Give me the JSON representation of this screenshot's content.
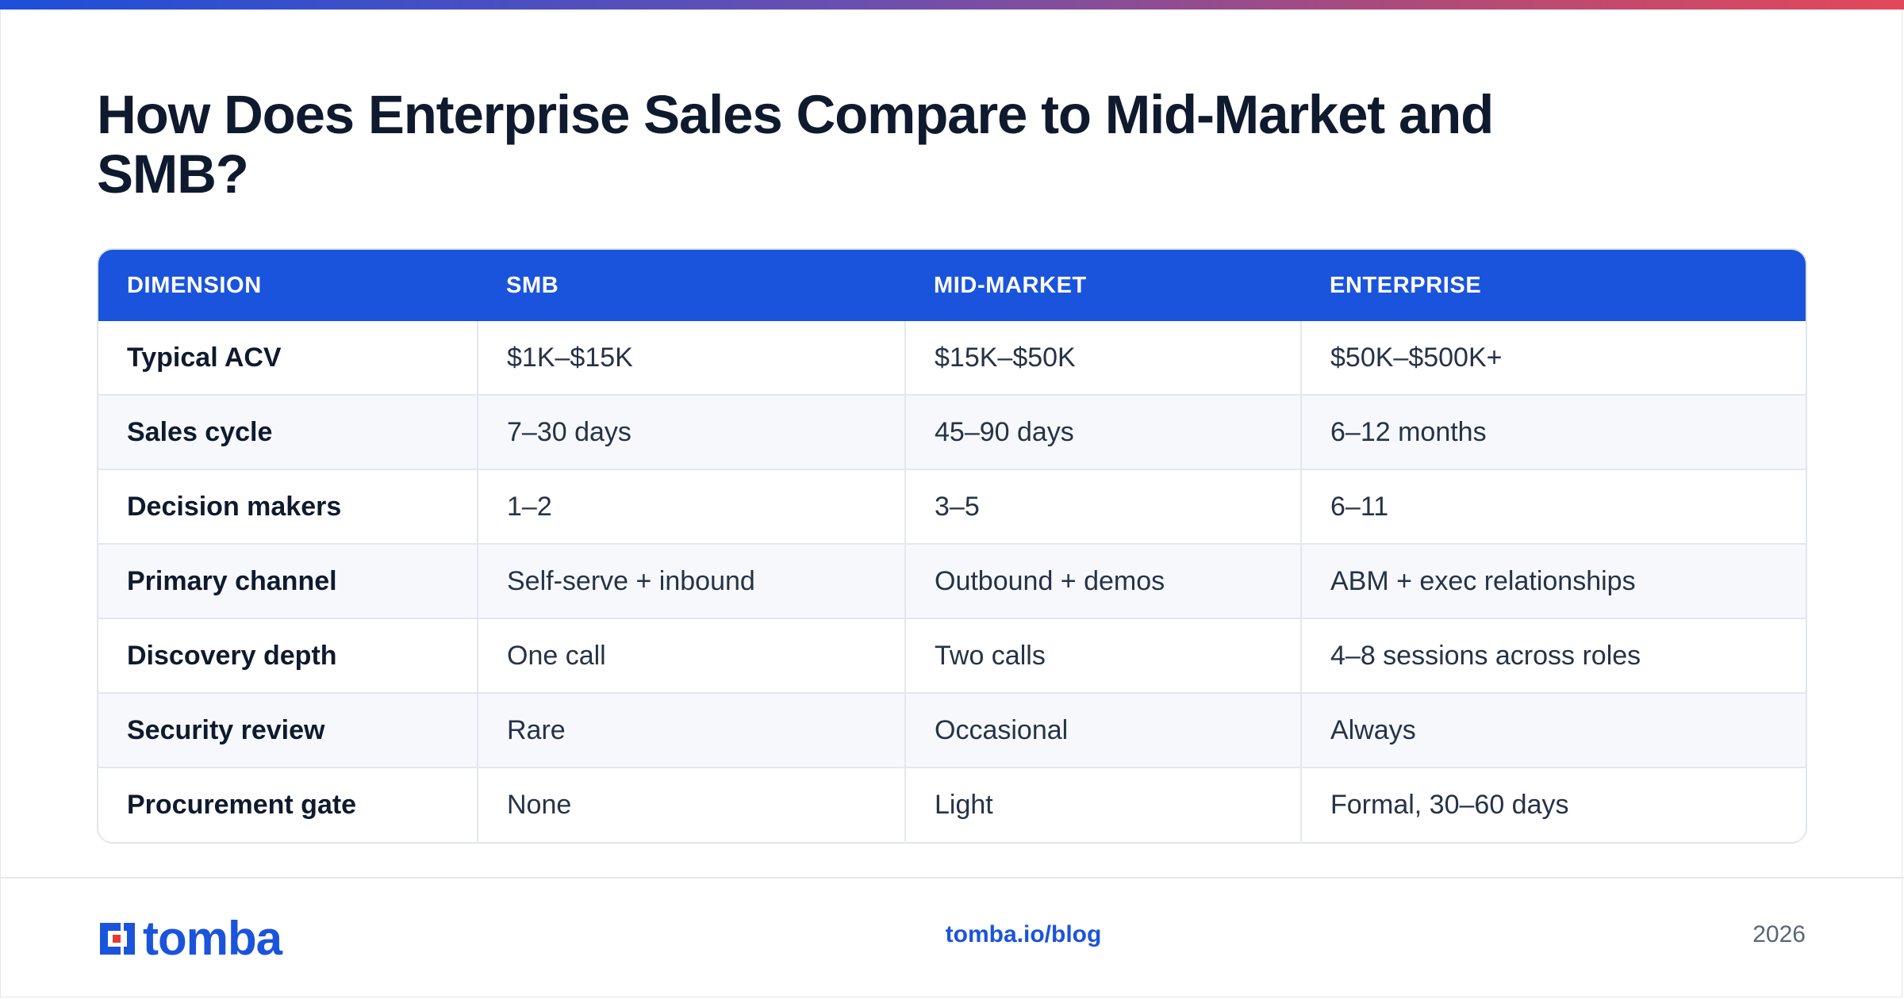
{
  "title": "How Does Enterprise Sales Compare to Mid-Market and SMB?",
  "colors": {
    "accent": "#1b54dc",
    "gradient": [
      "#1d4fd8",
      "#6a4fb0",
      "#b04a78",
      "#e3485a"
    ],
    "text": "#0f1a2e"
  },
  "table": {
    "headers": [
      "DIMENSION",
      "SMB",
      "MID-MARKET",
      "ENTERPRISE"
    ],
    "rows": [
      [
        "Typical ACV",
        "$1K–$15K",
        "$15K–$50K",
        "$50K–$500K+"
      ],
      [
        "Sales cycle",
        "7–30 days",
        "45–90 days",
        "6–12 months"
      ],
      [
        "Decision makers",
        "1–2",
        "3–5",
        "6–11"
      ],
      [
        "Primary channel",
        "Self-serve + inbound",
        "Outbound + demos",
        "ABM + exec relationships"
      ],
      [
        "Discovery depth",
        "One call",
        "Two calls",
        "4–8 sessions across roles"
      ],
      [
        "Security review",
        "Rare",
        "Occasional",
        "Always"
      ],
      [
        "Procurement gate",
        "None",
        "Light",
        "Formal, 30–60 days"
      ]
    ]
  },
  "footer": {
    "logo_text": "tomba",
    "logo_icon": "tomba-logo-icon",
    "url": "tomba.io/blog",
    "year": "2026"
  }
}
